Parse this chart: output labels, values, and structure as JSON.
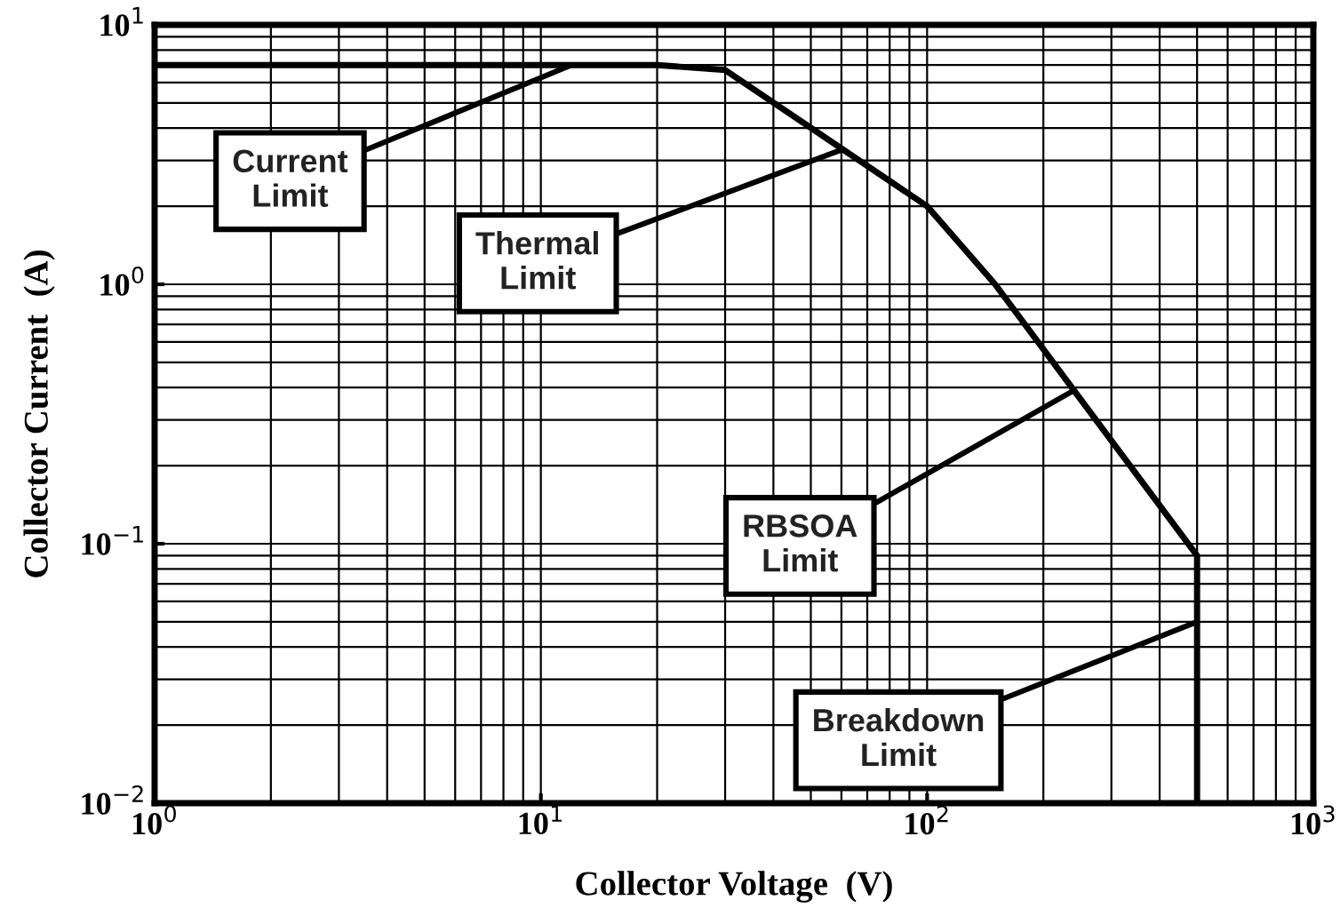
{
  "chart_data": {
    "type": "line",
    "xlabel": "Collector Voltage  (V)",
    "ylabel": "Collector Current  (A)",
    "log": "xy",
    "grid": true,
    "marker": "none",
    "line_style": "solid",
    "x": [
      1,
      20,
      30,
      100,
      150,
      240,
      500,
      500
    ],
    "series": [
      {
        "color": "#000000",
        "values": [
          7,
          7,
          6.7,
          2.0,
          1.0,
          0.39,
          0.09,
          0.01
        ]
      }
    ],
    "xlim": [
      1,
      1000
    ],
    "ylim": [
      0.01,
      10
    ],
    "xticks": [
      {
        "value": 1,
        "label": "10$^{0}$"
      },
      {
        "value": 10,
        "label": "10$^{1}$"
      },
      {
        "value": 100,
        "label": "10$^{2}$"
      },
      {
        "value": 1000,
        "label": "10$^{3}$"
      }
    ],
    "yticks": [
      {
        "value": 0.01,
        "label": "10$^{−2}$"
      },
      {
        "value": 0.1,
        "label": "10$^{−1}$"
      },
      {
        "value": 1,
        "label": "10$^{0}$"
      },
      {
        "value": 10,
        "label": "10$^{1}$"
      }
    ],
    "annotations": [
      {
        "text": "Current\nLimit",
        "x": 12,
        "y": 7
      },
      {
        "text": "Thermal\nLimit",
        "x": 60,
        "y": 3.3
      },
      {
        "text": "RBSOA\nLimit",
        "x": 240,
        "y": 0.39
      },
      {
        "text": "Breakdown\nLimit",
        "x": 500,
        "y": 0.05
      }
    ]
  }
}
